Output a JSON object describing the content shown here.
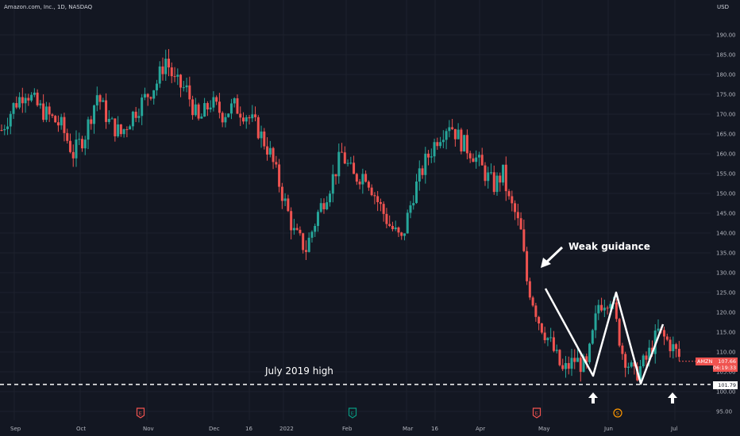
{
  "header": {
    "title": "Amazon.com, Inc., 1D, NASDAQ",
    "currency": "USD"
  },
  "y_axis_labels": [
    "190.00",
    "185.00",
    "180.00",
    "175.00",
    "170.00",
    "165.00",
    "160.00",
    "155.00",
    "150.00",
    "145.00",
    "140.00",
    "135.00",
    "130.00",
    "125.00",
    "120.00",
    "115.00",
    "110.00",
    "105.00",
    "100.00",
    "95.00"
  ],
  "x_axis_labels": [
    "Sep",
    "Oct",
    "Nov",
    "Dec",
    "16",
    "2022",
    "Feb",
    "Mar",
    "16",
    "Apr",
    "May",
    "Jun",
    "Jul"
  ],
  "annotations": {
    "weak_guidance": "Weak guidance",
    "july_high": "July 2019 high"
  },
  "price_tag": {
    "symbol": "AMZN",
    "price": "107.66",
    "countdown": "06:19:33"
  },
  "level_tag": "101.79",
  "event_markers": [
    {
      "type": "earnings",
      "letter": "E",
      "color": "#f05350"
    },
    {
      "type": "earnings",
      "letter": "E",
      "color": "#089981"
    },
    {
      "type": "earnings",
      "letter": "E",
      "color": "#f05350"
    },
    {
      "type": "split",
      "letter": "S",
      "color": "#ff9800"
    }
  ],
  "colors": {
    "background": "#131722",
    "up": "#26a69a",
    "down": "#ef5350",
    "grid": "#1e222d",
    "text": "#b2b5be"
  },
  "chart_data": {
    "type": "candlestick",
    "x_ticks": [
      "Sep",
      "Oct",
      "Nov",
      "Dec",
      "16",
      "2022",
      "Feb",
      "Mar",
      "16",
      "Apr",
      "May",
      "Jun",
      "Jul"
    ],
    "ylim": [
      93,
      192
    ],
    "y_ticks": [
      95,
      100,
      105,
      110,
      115,
      120,
      125,
      130,
      135,
      140,
      145,
      150,
      155,
      160,
      165,
      170,
      175,
      180,
      185,
      190
    ],
    "close_path": [
      [
        0,
        166
      ],
      [
        4,
        172
      ],
      [
        8,
        176
      ],
      [
        12,
        172
      ],
      [
        15,
        170
      ],
      [
        20,
        167
      ],
      [
        24,
        160
      ],
      [
        28,
        165
      ],
      [
        32,
        175
      ],
      [
        36,
        168
      ],
      [
        40,
        165
      ],
      [
        44,
        170
      ],
      [
        48,
        174
      ],
      [
        52,
        178
      ],
      [
        55,
        184
      ],
      [
        58,
        178
      ],
      [
        62,
        176
      ],
      [
        66,
        168
      ],
      [
        70,
        173
      ],
      [
        74,
        170
      ],
      [
        78,
        172
      ],
      [
        82,
        170
      ],
      [
        86,
        166
      ],
      [
        90,
        160
      ],
      [
        94,
        150
      ],
      [
        98,
        140
      ],
      [
        102,
        136
      ],
      [
        106,
        145
      ],
      [
        110,
        152
      ],
      [
        114,
        160
      ],
      [
        118,
        154
      ],
      [
        122,
        155
      ],
      [
        126,
        148
      ],
      [
        130,
        142
      ],
      [
        134,
        138
      ],
      [
        138,
        150
      ],
      [
        142,
        158
      ],
      [
        146,
        164
      ],
      [
        150,
        168
      ],
      [
        154,
        163
      ],
      [
        158,
        160
      ],
      [
        162,
        155
      ],
      [
        165,
        152
      ],
      [
        168,
        155
      ],
      [
        170,
        148
      ],
      [
        172,
        145
      ],
      [
        174,
        140
      ],
      [
        176,
        128
      ],
      [
        180,
        118
      ],
      [
        184,
        112
      ],
      [
        188,
        105
      ],
      [
        192,
        108
      ],
      [
        196,
        106
      ],
      [
        200,
        122
      ],
      [
        204,
        124
      ],
      [
        208,
        110
      ],
      [
        212,
        104
      ],
      [
        216,
        108
      ],
      [
        220,
        115
      ],
      [
        224,
        112
      ],
      [
        228,
        107.66
      ]
    ],
    "overlay_zigzag": [
      [
        126.0,
        "May"
      ],
      [
        104,
        "May"
      ],
      [
        125,
        "Jun"
      ],
      [
        102,
        "Jun"
      ],
      [
        117,
        "Jul"
      ]
    ],
    "horizontal_level": 101.79,
    "last_price": 107.66
  }
}
